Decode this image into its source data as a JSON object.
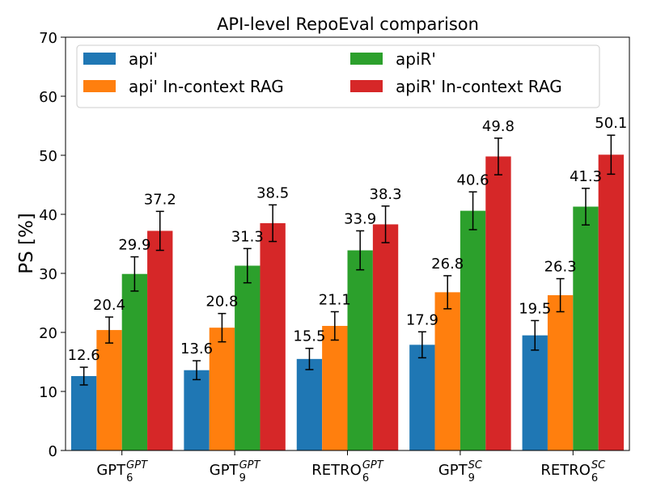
{
  "chart_data": {
    "type": "bar",
    "title": "API-level RepoEval comparison",
    "xlabel": "",
    "ylabel": "PS [%]",
    "ylim": [
      0,
      70
    ],
    "yticks": [
      0,
      10,
      20,
      30,
      40,
      50,
      60,
      70
    ],
    "grid": false,
    "legend_position": "top",
    "categories": [
      {
        "base": "GPT",
        "sub": "6",
        "sup": "GPT"
      },
      {
        "base": "GPT",
        "sub": "9",
        "sup": "GPT"
      },
      {
        "base": "RETRO",
        "sub": "6",
        "sup": "GPT"
      },
      {
        "base": "GPT",
        "sub": "9",
        "sup": "SC"
      },
      {
        "base": "RETRO",
        "sub": "6",
        "sup": "SC"
      }
    ],
    "series": [
      {
        "name": "api'",
        "color": "#1f77b4",
        "values": [
          12.6,
          13.6,
          15.5,
          17.9,
          19.5
        ],
        "errors": [
          1.5,
          1.6,
          1.8,
          2.2,
          2.5
        ]
      },
      {
        "name": "api' In-context RAG",
        "color": "#ff7f0e",
        "values": [
          20.4,
          20.8,
          21.1,
          26.8,
          26.3
        ],
        "errors": [
          2.2,
          2.4,
          2.4,
          2.8,
          2.8
        ]
      },
      {
        "name": "apiR'",
        "color": "#2ca02c",
        "values": [
          29.9,
          31.3,
          33.9,
          40.6,
          41.3
        ],
        "errors": [
          2.9,
          2.9,
          3.3,
          3.2,
          3.1
        ]
      },
      {
        "name": "apiR' In-context RAG",
        "color": "#d62728",
        "values": [
          37.2,
          38.5,
          38.3,
          49.8,
          50.1
        ],
        "errors": [
          3.3,
          3.1,
          3.1,
          3.1,
          3.3
        ]
      }
    ]
  }
}
